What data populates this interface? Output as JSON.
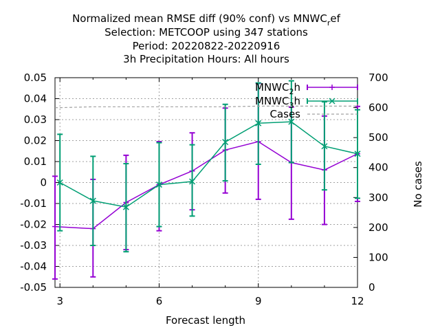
{
  "chart_data": {
    "type": "line",
    "title_lines": [
      "Normalized mean RMSE diff (90% conf) vs MNWC",
      "Selection: METCOOP using   347 stations",
      "Period: 20220822-20220916",
      "3h Precipitation   Hours:  All hours"
    ],
    "title_sub": "r",
    "title_sub_tail": "ef",
    "xlabel": "Forecast length",
    "y2label": "No cases",
    "xlim": [
      2.85,
      12
    ],
    "ylim": [
      -0.05,
      0.05
    ],
    "y2lim": [
      0,
      700
    ],
    "x_ticks": [
      3,
      6,
      9,
      12
    ],
    "x_tick_labels": [
      "3",
      "6",
      "9",
      "12"
    ],
    "y_ticks": [
      -0.05,
      -0.04,
      -0.03,
      -0.02,
      -0.01,
      0,
      0.01,
      0.02,
      0.03,
      0.04,
      0.05
    ],
    "y_tick_labels": [
      "-0.05",
      "-0.04",
      "-0.03",
      "-0.02",
      "-0.01",
      "0",
      "0.01",
      "0.02",
      "0.03",
      "0.04",
      "0.05"
    ],
    "y2_ticks": [
      0,
      100,
      200,
      300,
      400,
      500,
      600,
      700
    ],
    "y2_tick_labels": [
      "0",
      "100",
      "200",
      "300",
      "400",
      "500",
      "600",
      "700"
    ],
    "grid": true,
    "legend_position": "top-right",
    "series": [
      {
        "name": "MNWC",
        "name_sub": "2",
        "name_tail": "h",
        "color": "#9400d3",
        "marker": "plus",
        "x": [
          2.85,
          4,
          5,
          6,
          7,
          8,
          9,
          10,
          11,
          12
        ],
        "y": [
          -0.021,
          -0.022,
          -0.0095,
          -0.001,
          0.0055,
          0.0155,
          0.0195,
          0.0095,
          0.006,
          0.0137
        ],
        "err_low": [
          -0.046,
          -0.045,
          -0.032,
          -0.023,
          -0.013,
          -0.005,
          -0.008,
          -0.0175,
          -0.02,
          -0.009
        ],
        "err_high": [
          0.003,
          0.0015,
          0.013,
          0.0195,
          0.0237,
          0.0355,
          0.0473,
          0.036,
          0.0317,
          0.0363
        ]
      },
      {
        "name": "MNWC",
        "name_sub": "3",
        "name_tail": "h",
        "color": "#009e73",
        "marker": "x",
        "x": [
          3,
          4,
          5,
          6,
          7,
          8,
          9,
          10,
          11,
          12
        ],
        "y": [
          0.0,
          -0.0087,
          -0.0117,
          -0.001,
          0.0005,
          0.0193,
          0.0283,
          0.029,
          0.0173,
          0.0137
        ],
        "err_low": [
          -0.023,
          -0.03,
          -0.033,
          -0.021,
          -0.016,
          0.0008,
          0.0087,
          0.0095,
          -0.0035,
          -0.0075
        ],
        "err_high": [
          0.023,
          0.0125,
          0.009,
          0.019,
          0.018,
          0.0373,
          0.0475,
          0.0485,
          0.0385,
          0.0347
        ]
      },
      {
        "name": "Cases",
        "color": "#a0a0a0",
        "axis": "y2",
        "dashed": true,
        "x": [
          2.85,
          3,
          4,
          5,
          6,
          7,
          8,
          9,
          10,
          11,
          12
        ],
        "y": [
          600,
          600,
          603,
          603,
          603,
          603,
          603,
          605,
          605,
          605,
          605
        ]
      }
    ]
  }
}
